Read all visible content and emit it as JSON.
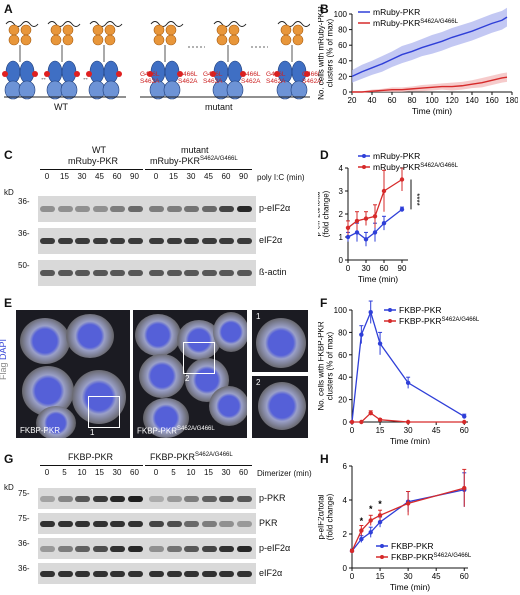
{
  "panels": {
    "A": {
      "label": "A",
      "wt_label": "WT",
      "mutant_label": "mutant",
      "site1": "G466L",
      "site2": "S462A"
    },
    "B": {
      "label": "B"
    },
    "C": {
      "label": "C",
      "col_wt": "WT",
      "col_wt_sub": "mRuby-PKR",
      "col_mut": "mutant",
      "col_mut_sub": "mRuby-PKR",
      "col_mut_sup": "S462A/G466L",
      "timepoints": [
        "0",
        "15",
        "30",
        "45",
        "60",
        "90",
        "0",
        "15",
        "30",
        "45",
        "60",
        "90"
      ],
      "treatment": "poly I:C (min)",
      "kd": "kD",
      "rows": [
        "p-eIF2α",
        "eIF2α",
        "ß-actin"
      ],
      "markers": [
        "36-",
        "36-",
        "50-"
      ]
    },
    "D": {
      "label": "D"
    },
    "E": {
      "label": "E",
      "flag": "Flag",
      "dapi": "DAPI",
      "img1": "FKBP-PKR",
      "img2": "FKBP-PKR",
      "img2_sup": "S462A/G466L",
      "inset1": "1",
      "inset2": "2"
    },
    "F": {
      "label": "F"
    },
    "G": {
      "label": "G",
      "col_a": "FKBP-PKR",
      "col_b": "FKBP-PKR",
      "col_b_sup": "S462A/G466L",
      "timepoints": [
        "0",
        "5",
        "10",
        "15",
        "30",
        "60",
        "0",
        "5",
        "10",
        "15",
        "30",
        "60"
      ],
      "treatment": "Dimerizer (min)",
      "kd": "kD",
      "rows": [
        "p-PKR",
        "PKR",
        "p-eIF2α",
        "eIF2α"
      ],
      "markers": [
        "75-",
        "75-",
        "36-",
        "36-"
      ]
    },
    "H": {
      "label": "H"
    }
  },
  "chart_data": [
    {
      "id": "B",
      "type": "line",
      "xlabel": "Time (min)",
      "ylabel": "No. cells with mRuby-PKR clusters (% of max)",
      "xlim": [
        20,
        180
      ],
      "ylim": [
        0,
        100
      ],
      "xticks": [
        20,
        40,
        60,
        80,
        100,
        120,
        140,
        160,
        180
      ],
      "yticks": [
        0,
        20,
        40,
        60,
        80,
        100
      ],
      "legend_position": "top-left",
      "series": [
        {
          "name": "mRuby-PKR",
          "sup": "",
          "color": "#2f3fd8",
          "band": "#aab0ee",
          "x": [
            20,
            30,
            40,
            50,
            60,
            70,
            80,
            90,
            100,
            110,
            120,
            130,
            140,
            150,
            160,
            170,
            175
          ],
          "y": [
            20,
            26,
            31,
            36,
            42,
            48,
            52,
            57,
            61,
            65,
            70,
            74,
            78,
            83,
            88,
            92,
            96
          ],
          "err": [
            8,
            9,
            9,
            10,
            10,
            11,
            11,
            11,
            12,
            12,
            12,
            12,
            12,
            12,
            12,
            12,
            12
          ]
        },
        {
          "name": "mRuby-PKR",
          "sup": "S462A/G466L",
          "color": "#d62a2a",
          "band": "#f2b5b5",
          "x": [
            20,
            30,
            40,
            50,
            60,
            70,
            80,
            90,
            100,
            110,
            120,
            130,
            140,
            150,
            160,
            170,
            175
          ],
          "y": [
            0,
            0,
            1,
            2,
            3,
            3,
            4,
            5,
            6,
            7,
            7,
            8,
            10,
            12,
            15,
            18,
            19
          ],
          "err": [
            1,
            1,
            2,
            2,
            3,
            3,
            3,
            4,
            4,
            4,
            5,
            5,
            5,
            6,
            6,
            6,
            6
          ]
        }
      ]
    },
    {
      "id": "D",
      "type": "line",
      "xlabel": "Time (min)",
      "ylabel": "p-eIF2α/total (fold change)",
      "xlim": [
        0,
        100
      ],
      "ylim": [
        0,
        4
      ],
      "xticks": [
        0,
        30,
        60,
        90
      ],
      "yticks": [
        0,
        1,
        2,
        3,
        4
      ],
      "legend_position": "top",
      "annotation": "****",
      "series": [
        {
          "name": "mRuby-PKR",
          "sup": "",
          "color": "#2f3fd8",
          "x": [
            0,
            15,
            30,
            45,
            60,
            90
          ],
          "y": [
            1.0,
            1.2,
            0.9,
            1.2,
            1.6,
            2.2
          ],
          "err": [
            0.2,
            0.4,
            0.3,
            0.4,
            0.3,
            0.1
          ]
        },
        {
          "name": "mRuby-PKR",
          "sup": "S462A/G466L",
          "color": "#d62a2a",
          "x": [
            0,
            15,
            30,
            45,
            60,
            90
          ],
          "y": [
            1.4,
            1.7,
            1.8,
            1.9,
            3.0,
            3.5
          ],
          "err": [
            0.3,
            0.4,
            0.3,
            0.5,
            0.9,
            0.5
          ]
        }
      ]
    },
    {
      "id": "F",
      "type": "line",
      "xlabel": "Time (min)",
      "ylabel": "No. cells with FKBP-PKR clusters (% of max)",
      "xlim": [
        0,
        62
      ],
      "ylim": [
        0,
        100
      ],
      "xticks": [
        0,
        15,
        30,
        45,
        60
      ],
      "yticks": [
        0,
        20,
        40,
        60,
        80,
        100
      ],
      "legend_position": "top-right",
      "series": [
        {
          "name": "FKBP-PKR",
          "sup": "",
          "color": "#2f3fd8",
          "x": [
            0,
            5,
            10,
            15,
            30,
            60
          ],
          "y": [
            0,
            78,
            98,
            70,
            35,
            5
          ],
          "err": [
            0,
            8,
            10,
            10,
            5,
            2
          ]
        },
        {
          "name": "FKBP-PKR",
          "sup": "S462A/G466L",
          "color": "#d62a2a",
          "x": [
            0,
            5,
            10,
            15,
            30,
            60
          ],
          "y": [
            0,
            0,
            8,
            2,
            0,
            0
          ],
          "err": [
            0,
            0,
            2,
            1,
            0,
            0
          ]
        }
      ]
    },
    {
      "id": "H",
      "type": "line",
      "xlabel": "Time (min)",
      "ylabel": "p-eIF2α/total (fold change)",
      "xlim": [
        0,
        62
      ],
      "ylim": [
        0,
        6
      ],
      "xticks": [
        0,
        15,
        30,
        45,
        60
      ],
      "yticks": [
        0,
        2,
        4,
        6
      ],
      "legend_position": "bottom-right",
      "annotations": [
        "*",
        "*",
        "*"
      ],
      "series": [
        {
          "name": "FKBP-PKR",
          "sup": "",
          "color": "#2f3fd8",
          "x": [
            0,
            5,
            10,
            15,
            30,
            60
          ],
          "y": [
            1.0,
            1.7,
            2.1,
            2.7,
            3.9,
            4.6
          ],
          "err": [
            0.1,
            0.2,
            0.3,
            0.3,
            0.6,
            1.0
          ]
        },
        {
          "name": "FKBP-PKR",
          "sup": "S462A/G466L",
          "color": "#d62a2a",
          "x": [
            0,
            5,
            10,
            15,
            30,
            60
          ],
          "y": [
            1.0,
            2.2,
            2.8,
            3.1,
            3.8,
            4.7
          ],
          "err": [
            0.1,
            0.3,
            0.3,
            0.3,
            0.7,
            1.1
          ]
        }
      ]
    }
  ]
}
